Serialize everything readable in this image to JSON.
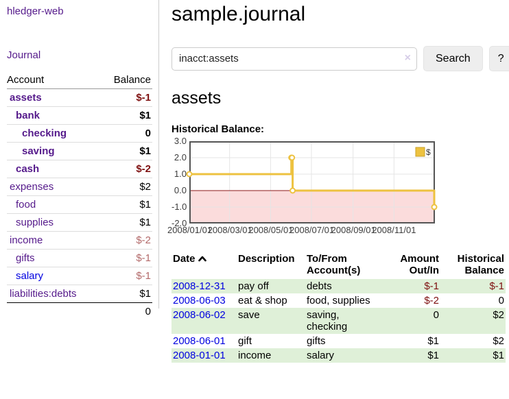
{
  "sidebar": {
    "brand": "hledger-web",
    "journal_link": "Journal",
    "accounts_table": {
      "headers": {
        "account": "Account",
        "balance": "Balance"
      },
      "rows": [
        {
          "name": "assets",
          "indent": 1,
          "balance": "$-1",
          "bold": true,
          "balance_style": "neg-strong"
        },
        {
          "name": "bank",
          "indent": 2,
          "balance": "$1",
          "bold": true,
          "balance_style": "plain"
        },
        {
          "name": "checking",
          "indent": 3,
          "balance": "0",
          "bold": true,
          "balance_style": "plain"
        },
        {
          "name": "saving",
          "indent": 3,
          "balance": "$1",
          "bold": true,
          "balance_style": "plain"
        },
        {
          "name": "cash",
          "indent": 2,
          "balance": "$-2",
          "bold": true,
          "balance_style": "neg-strong"
        },
        {
          "name": "expenses",
          "indent": 1,
          "balance": "$2",
          "bold": false,
          "balance_style": "plain"
        },
        {
          "name": "food",
          "indent": 2,
          "balance": "$1",
          "bold": false,
          "balance_style": "plain"
        },
        {
          "name": "supplies",
          "indent": 2,
          "balance": "$1",
          "bold": false,
          "balance_style": "plain"
        },
        {
          "name": "income",
          "indent": 1,
          "balance": "$-2",
          "bold": false,
          "balance_style": "neg-muted"
        },
        {
          "name": "gifts",
          "indent": 2,
          "balance": "$-1",
          "bold": false,
          "balance_style": "neg-muted"
        },
        {
          "name": "salary",
          "indent": 2,
          "balance": "$-1",
          "bold": false,
          "balance_style": "neg-muted",
          "link_color": "blue"
        },
        {
          "name": "liabilities:debts",
          "indent": 1,
          "balance": "$1",
          "bold": false,
          "balance_style": "plain"
        }
      ],
      "total": "0"
    }
  },
  "header": {
    "title": "sample.journal"
  },
  "search": {
    "value": "inacct:assets",
    "clear_icon": "×",
    "button_label": "Search",
    "help_label": "?"
  },
  "account_page": {
    "heading": "assets",
    "chart_label": "Historical Balance:"
  },
  "chart_data": {
    "type": "line",
    "step": true,
    "title": "Historical Balance:",
    "series": [
      {
        "name": "$",
        "points": [
          [
            "2008-01-01",
            1
          ],
          [
            "2008-06-01",
            2
          ],
          [
            "2008-06-02",
            2
          ],
          [
            "2008-06-03",
            0
          ],
          [
            "2008-12-31",
            -1
          ]
        ]
      }
    ],
    "x_range": [
      "2008-01-01",
      "2009-01-01"
    ],
    "x_ticks": [
      "2008/01/01",
      "2008/03/01",
      "2008/05/01",
      "2008/07/01",
      "2008/09/01",
      "2008/11/01"
    ],
    "y_ticks": [
      "3.0",
      "2.0",
      "1.0",
      "0.0",
      "-1.0",
      "-2.0"
    ],
    "ylim": [
      -2,
      3
    ],
    "grid": true,
    "negative_region_shaded": true,
    "legend": {
      "label": "$",
      "position": "top-right"
    },
    "colors": {
      "line": "#edc240",
      "marker_fill": "#ffffff",
      "legend_box": "#edc240",
      "legend_box_border": "#c9a22c",
      "negative_fill": "#fbdcdc",
      "zero_line": "#8c1a1a",
      "grid": "#e5e5e5",
      "border": "#545454",
      "tick_text": "#3c3c3c"
    }
  },
  "register_table": {
    "headers": {
      "date": "Date",
      "sort_icon": "chevron-up",
      "description": "Description",
      "accounts_line1": "To/From",
      "accounts_line2": "Account(s)",
      "amount_line1": "Amount",
      "amount_line2": "Out/In",
      "balance_line1": "Historical",
      "balance_line2": "Balance"
    },
    "rows": [
      {
        "date": "2008-12-31",
        "description": "pay off",
        "accounts": "debts",
        "amount": "$-1",
        "amount_negative": true,
        "balance": "$-1",
        "balance_negative": true
      },
      {
        "date": "2008-06-03",
        "description": "eat & shop",
        "accounts": "food, supplies",
        "amount": "$-2",
        "amount_negative": true,
        "balance": "0",
        "balance_negative": false
      },
      {
        "date": "2008-06-02",
        "description": "save",
        "accounts": "saving, checking",
        "amount": "0",
        "amount_negative": false,
        "balance": "$2",
        "balance_negative": false
      },
      {
        "date": "2008-06-01",
        "description": "gift",
        "accounts": "gifts",
        "amount": "$1",
        "amount_negative": false,
        "balance": "$2",
        "balance_negative": false
      },
      {
        "date": "2008-01-01",
        "description": "income",
        "accounts": "salary",
        "amount": "$1",
        "amount_negative": false,
        "balance": "$1",
        "balance_negative": false
      }
    ]
  },
  "colors": {
    "link_purple": "#551a8b",
    "link_blue": "#0000e0",
    "negative_strong": "#7e1010",
    "negative_muted": "#b36a6a",
    "row_green": "#dff0d8",
    "sidebar_border": "#cccccc"
  }
}
